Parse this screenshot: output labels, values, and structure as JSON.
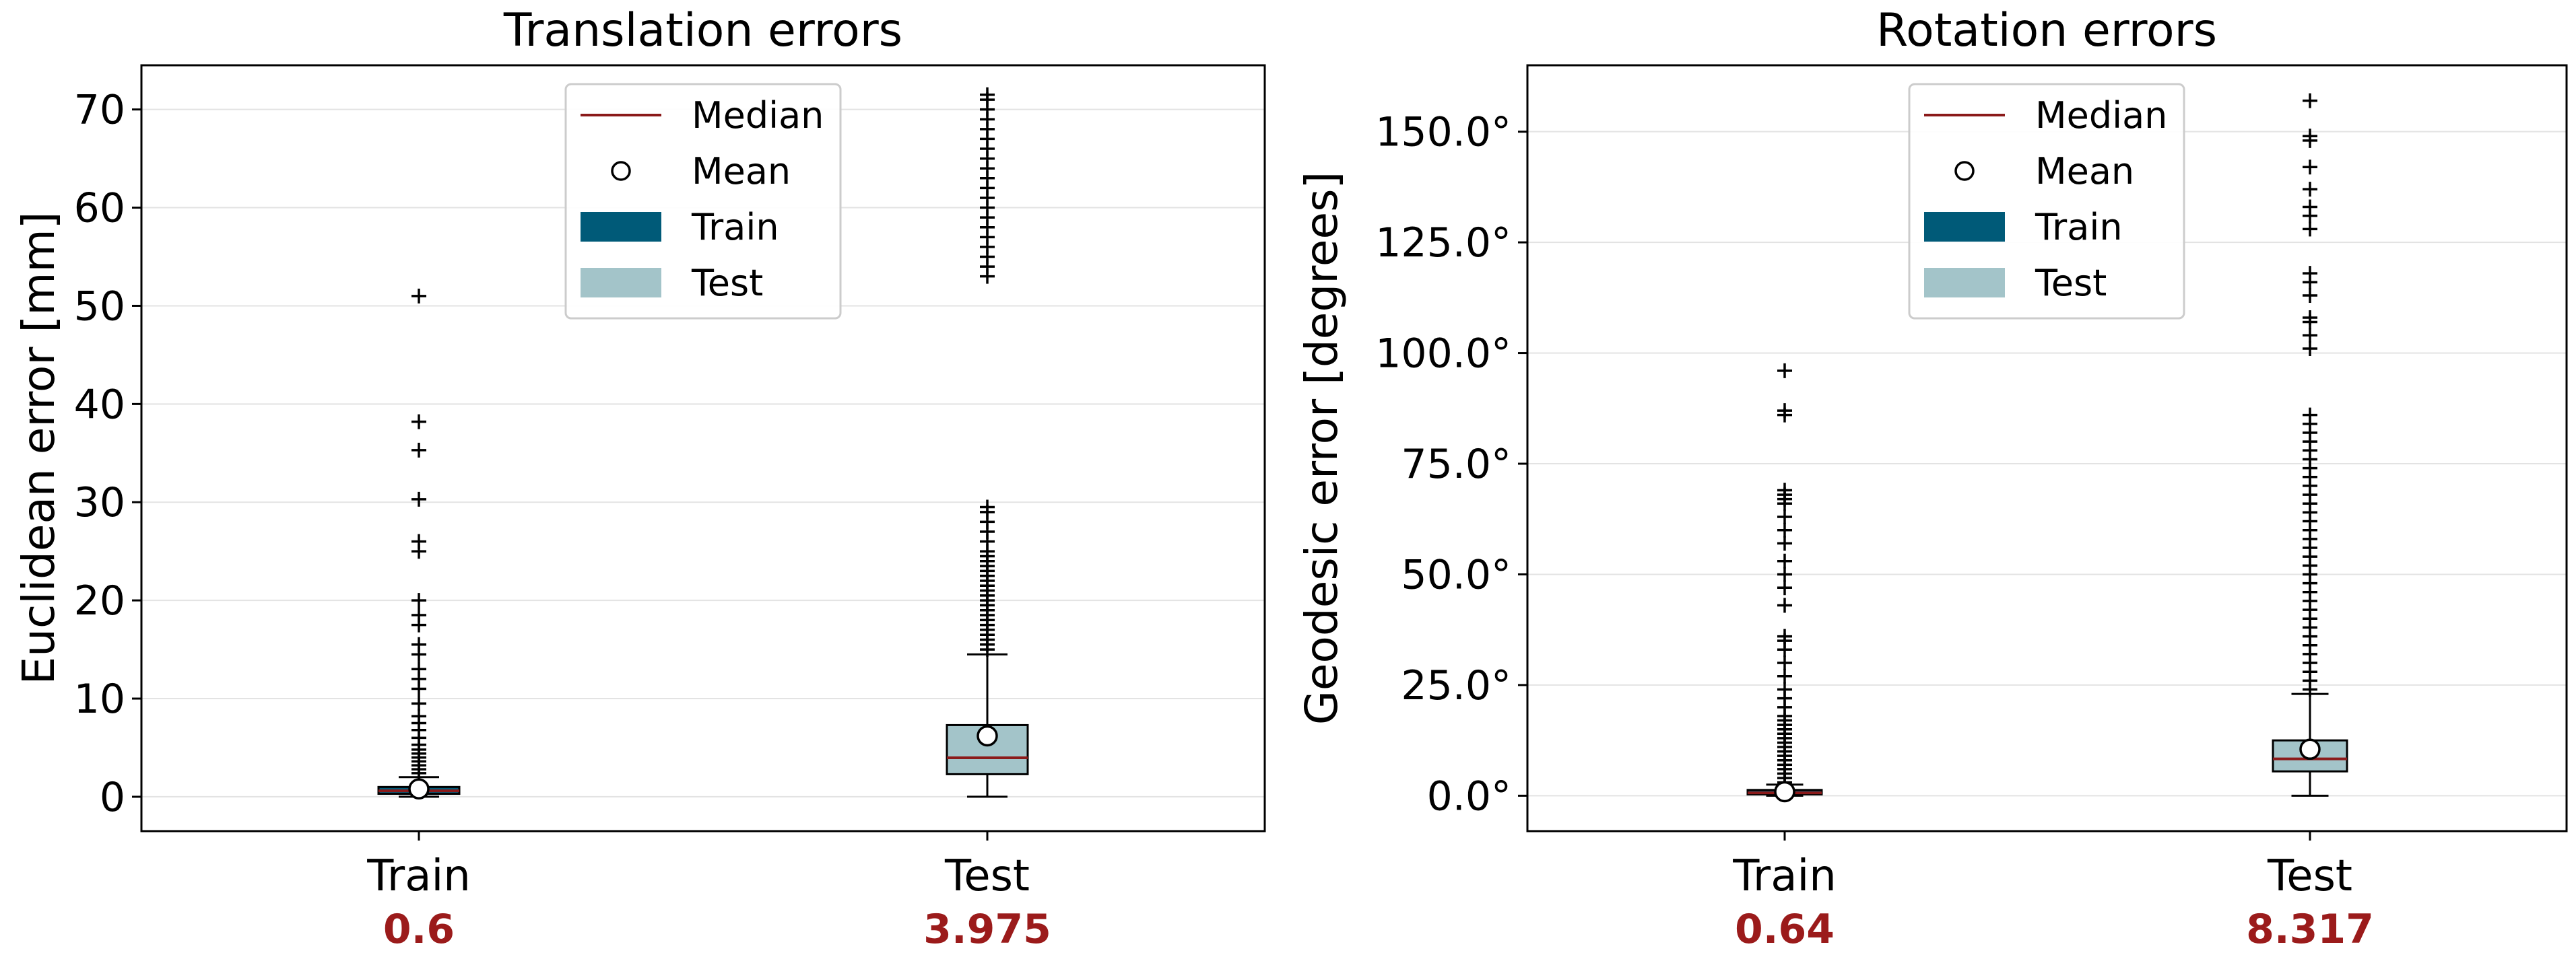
{
  "colors": {
    "median": "#8b1a1a",
    "train": "#005a78",
    "test": "#a3c4c9",
    "median_label": "#9b1b1b"
  },
  "legend": {
    "items": [
      {
        "label": "Median",
        "kind": "line"
      },
      {
        "label": "Mean",
        "kind": "circle"
      },
      {
        "label": "Train",
        "kind": "train"
      },
      {
        "label": "Test",
        "kind": "test"
      }
    ]
  },
  "chart_data": [
    {
      "type": "box",
      "title": "Translation errors",
      "ylabel": "Euclidean error [mm]",
      "ylim": [
        -3.5,
        74.5
      ],
      "yticks": [
        0,
        10,
        20,
        30,
        40,
        50,
        60,
        70
      ],
      "tick_suffix": "",
      "grid": true,
      "legend_position": "top-center",
      "categories": [
        "Train",
        "Test"
      ],
      "medians_printed": [
        "0.6",
        "3.975"
      ],
      "boxes": [
        {
          "name": "Train",
          "whisker_low": 0.0,
          "q1": 0.3,
          "median": 0.6,
          "q3": 1.0,
          "whisker_high": 2.0,
          "mean": 0.8,
          "outliers": [
            2.4,
            2.8,
            3.2,
            3.6,
            4.0,
            4.4,
            4.8,
            5.3,
            6.0,
            6.8,
            7.5,
            8.2,
            9.5,
            11.0,
            12.0,
            13.0,
            14.5,
            15.5,
            17.5,
            18.5,
            20.0,
            25.0,
            26.0,
            30.3,
            35.3,
            38.2,
            51.0
          ]
        },
        {
          "name": "Test",
          "whisker_low": 0.0,
          "q1": 2.3,
          "median": 3.975,
          "q3": 7.3,
          "whisker_high": 14.5,
          "mean": 6.2,
          "outliers": [
            15.0,
            15.5,
            16.0,
            16.5,
            17.0,
            17.5,
            18.0,
            18.5,
            19.0,
            19.5,
            20.0,
            20.5,
            21.0,
            21.5,
            22.0,
            22.5,
            23.0,
            23.5,
            24.0,
            24.5,
            25.0,
            26.0,
            27.0,
            28.0,
            29.0,
            29.5,
            53.0,
            54.0,
            55.0,
            56.0,
            57.0,
            58.0,
            59.0,
            60.0,
            61.0,
            62.0,
            63.0,
            64.0,
            65.0,
            66.0,
            67.0,
            68.0,
            69.0,
            70.0,
            71.0,
            71.5
          ]
        }
      ]
    },
    {
      "type": "box",
      "title": "Rotation errors",
      "ylabel": "Geodesic error [degrees]",
      "ylim": [
        -8,
        165
      ],
      "yticks": [
        0,
        25,
        50,
        75,
        100,
        125,
        150
      ],
      "tick_labels": [
        "0.0°",
        "25.0°",
        "50.0°",
        "75.0°",
        "100.0°",
        "125.0°",
        "150.0°"
      ],
      "grid": true,
      "legend_position": "top-center",
      "categories": [
        "Train",
        "Test"
      ],
      "medians_printed": [
        "0.64",
        "8.317"
      ],
      "boxes": [
        {
          "name": "Train",
          "whisker_low": 0.0,
          "q1": 0.3,
          "median": 0.64,
          "q3": 1.3,
          "whisker_high": 2.5,
          "mean": 0.9,
          "outliers": [
            3.0,
            4.0,
            5.0,
            6.0,
            7.0,
            8.0,
            9.0,
            10.0,
            11.0,
            12.0,
            13.0,
            14.0,
            15.0,
            16.0,
            17.0,
            18.0,
            20.0,
            22.0,
            24.0,
            27.0,
            30.0,
            33.0,
            35.0,
            36.0,
            43.0,
            47.0,
            50.0,
            53.0,
            57.0,
            60.0,
            63.0,
            66.0,
            67.0,
            68.0,
            69.0,
            86.0,
            87.0,
            96.0
          ]
        },
        {
          "name": "Test",
          "whisker_low": 0.0,
          "q1": 5.5,
          "median": 8.317,
          "q3": 12.5,
          "whisker_high": 23.0,
          "mean": 10.5,
          "outliers": [
            24.0,
            26.0,
            28.0,
            30.0,
            32.0,
            34.0,
            36.0,
            38.0,
            40.0,
            42.0,
            44.0,
            46.0,
            48.0,
            50.0,
            52.0,
            54.0,
            56.0,
            58.0,
            60.0,
            62.0,
            64.0,
            66.0,
            68.0,
            70.0,
            72.0,
            74.0,
            76.0,
            78.0,
            80.0,
            82.0,
            84.0,
            86.0,
            101.0,
            104.0,
            107.0,
            108.0,
            113.0,
            116.0,
            118.0,
            128.0,
            131.0,
            133.0,
            137.0,
            142.0,
            148.0,
            149.0,
            157.0
          ]
        }
      ]
    }
  ]
}
